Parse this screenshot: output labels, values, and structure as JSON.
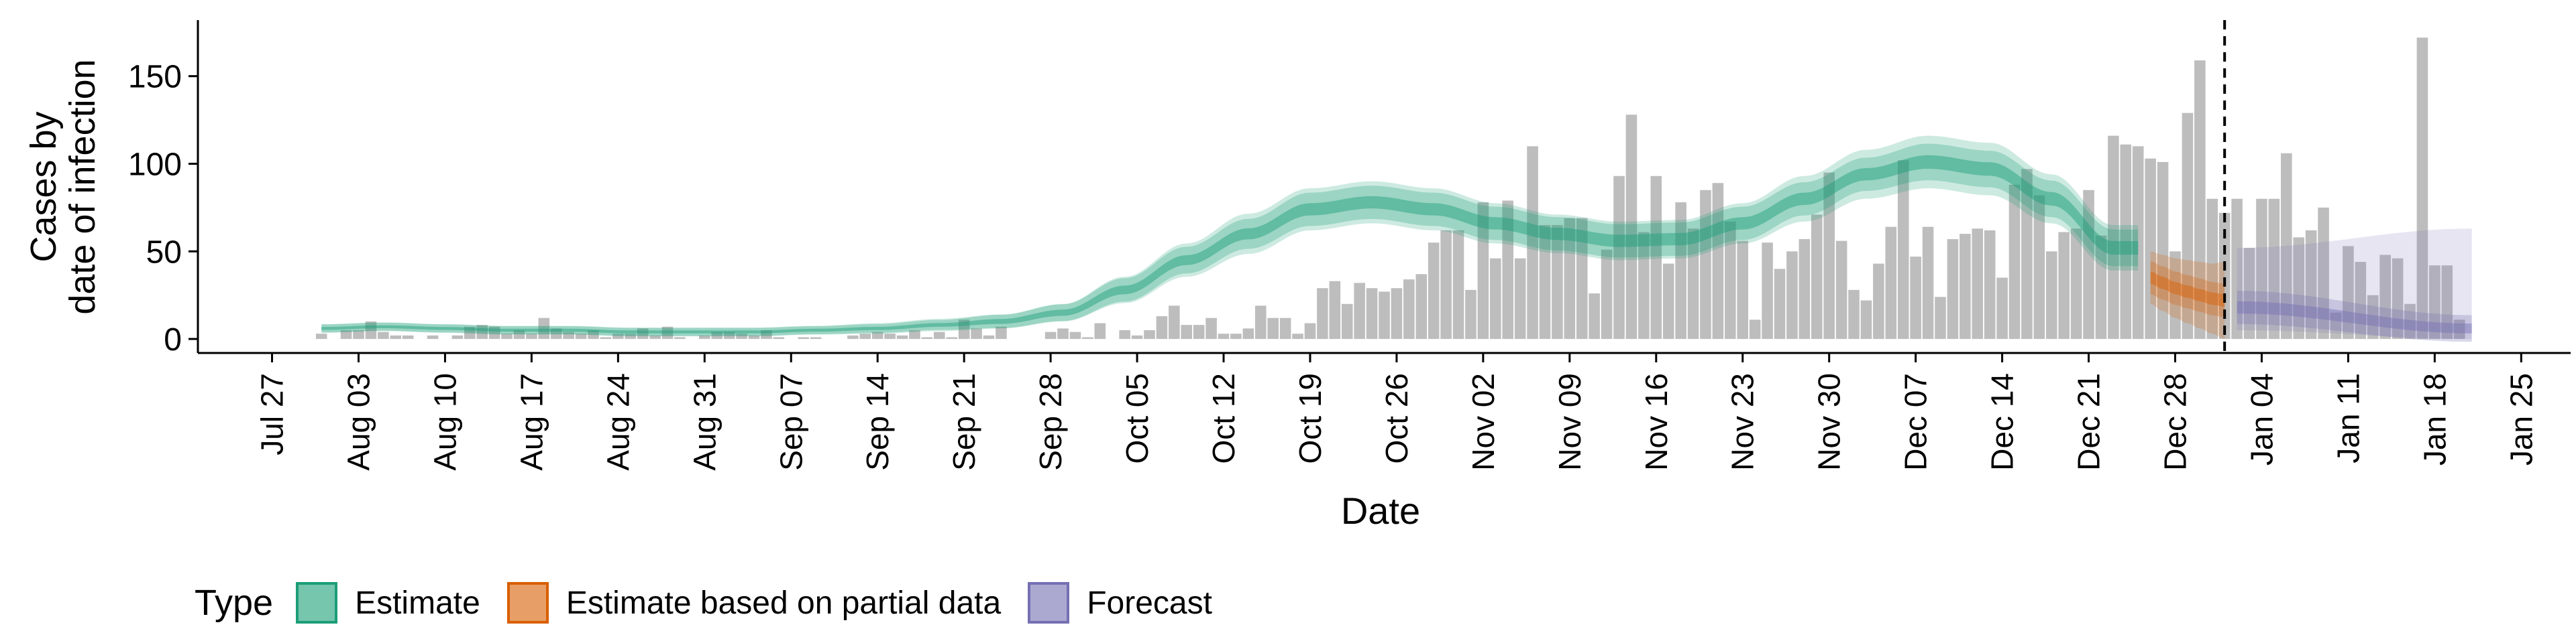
{
  "colors": {
    "bars": "#bdbdbd",
    "estimate": "#1b9e77",
    "partial": "#d95f02",
    "forecast": "#7570b3"
  },
  "chart_data": {
    "type": "bar",
    "title": "",
    "xlabel": "Date",
    "ylabel": "Cases by\ndate of infection",
    "ylim": [
      -8,
      182
    ],
    "yticks": [
      0,
      50,
      100,
      150
    ],
    "xlim": [
      "2020-07-21",
      "2021-01-29"
    ],
    "xticks": [
      {
        "date": "2020-07-27",
        "label": "Jul 27"
      },
      {
        "date": "2020-08-03",
        "label": "Aug 03"
      },
      {
        "date": "2020-08-10",
        "label": "Aug 10"
      },
      {
        "date": "2020-08-17",
        "label": "Aug 17"
      },
      {
        "date": "2020-08-24",
        "label": "Aug 24"
      },
      {
        "date": "2020-08-31",
        "label": "Aug 31"
      },
      {
        "date": "2020-09-07",
        "label": "Sep 07"
      },
      {
        "date": "2020-09-14",
        "label": "Sep 14"
      },
      {
        "date": "2020-09-21",
        "label": "Sep 21"
      },
      {
        "date": "2020-09-28",
        "label": "Sep 28"
      },
      {
        "date": "2020-10-05",
        "label": "Oct 05"
      },
      {
        "date": "2020-10-12",
        "label": "Oct 12"
      },
      {
        "date": "2020-10-19",
        "label": "Oct 19"
      },
      {
        "date": "2020-10-26",
        "label": "Oct 26"
      },
      {
        "date": "2020-11-02",
        "label": "Nov 02"
      },
      {
        "date": "2020-11-09",
        "label": "Nov 09"
      },
      {
        "date": "2020-11-16",
        "label": "Nov 16"
      },
      {
        "date": "2020-11-23",
        "label": "Nov 23"
      },
      {
        "date": "2020-11-30",
        "label": "Nov 30"
      },
      {
        "date": "2020-12-07",
        "label": "Dec 07"
      },
      {
        "date": "2020-12-14",
        "label": "Dec 14"
      },
      {
        "date": "2020-12-21",
        "label": "Dec 21"
      },
      {
        "date": "2020-12-28",
        "label": "Dec 28"
      },
      {
        "date": "2021-01-04",
        "label": "Jan 04"
      },
      {
        "date": "2021-01-11",
        "label": "Jan 11"
      },
      {
        "date": "2021-01-18",
        "label": "Jan 18"
      },
      {
        "date": "2021-01-25",
        "label": "Jan 25"
      }
    ],
    "forecast_start": "2021-01-01",
    "grid": false,
    "legend_position": "bottom-left",
    "bars": {
      "start_date": "2020-07-31",
      "values": [
        3,
        0,
        5,
        5,
        10,
        4,
        2,
        2,
        0,
        2,
        0,
        2,
        7,
        8,
        7,
        3,
        5,
        3,
        12,
        6,
        4,
        3,
        5,
        1,
        3,
        3,
        6,
        2,
        7,
        1,
        0,
        2,
        4,
        4,
        3,
        2,
        5,
        1,
        0,
        1,
        1,
        0,
        0,
        2,
        3,
        4,
        3,
        2,
        5,
        1,
        4,
        1,
        11,
        6,
        2,
        7,
        0,
        0,
        0,
        4,
        6,
        4,
        1,
        9,
        0,
        5,
        2,
        5,
        13,
        19,
        8,
        8,
        12,
        3,
        3,
        6,
        19,
        12,
        12,
        3,
        9,
        29,
        33,
        20,
        32,
        29,
        27,
        29,
        34,
        37,
        55,
        62,
        62,
        28,
        78,
        46,
        79,
        46,
        110,
        65,
        65,
        69,
        69,
        26,
        51,
        93,
        128,
        61,
        93,
        43,
        78,
        63,
        85,
        89,
        67,
        56,
        11,
        55,
        40,
        50,
        57,
        71,
        95,
        56,
        28,
        22,
        43,
        64,
        102,
        47,
        64,
        24,
        57,
        60,
        63,
        62,
        35,
        88,
        97,
        82,
        50,
        61,
        63,
        85,
        59,
        116,
        111,
        110,
        103,
        101,
        50,
        129,
        159,
        80,
        72,
        80,
        52,
        80,
        80,
        106,
        58,
        62,
        75,
        15,
        53,
        44,
        25,
        48,
        46,
        20,
        172,
        42,
        42,
        11
      ]
    },
    "series": [
      {
        "name": "Estimate",
        "start_date": "2020-07-31",
        "end_date": "2020-12-25",
        "knots_days": [
          0,
          5,
          10,
          15,
          20,
          25,
          30,
          35,
          40,
          45,
          50,
          55,
          60,
          65,
          70,
          75,
          80,
          85,
          90,
          95,
          100,
          105,
          110,
          115,
          120,
          125,
          130,
          135,
          140,
          145
        ],
        "median": [
          6,
          7,
          6,
          5,
          5,
          4,
          4,
          4,
          5,
          6,
          8,
          10,
          15,
          28,
          45,
          60,
          74,
          78,
          74,
          66,
          60,
          56,
          57,
          66,
          80,
          94,
          101,
          97,
          80,
          52
        ],
        "inner_half_width": [
          1.2,
          1.2,
          1.2,
          1.2,
          1.2,
          1.2,
          1.2,
          1.2,
          1.2,
          1.3,
          1.5,
          2,
          2.5,
          3.5,
          4,
          4.5,
          5,
          5,
          5,
          5,
          5,
          5,
          5,
          5,
          5,
          5,
          5.5,
          5.5,
          5.5,
          5.5
        ],
        "outer_half_width": [
          2.5,
          2.5,
          2.5,
          2.5,
          2.5,
          2.5,
          2.5,
          2.5,
          2.5,
          3,
          3.5,
          4,
          5,
          7.5,
          9.5,
          11.5,
          12,
          12,
          12,
          11.5,
          11,
          11,
          11,
          11.5,
          13,
          14,
          15,
          15,
          14,
          13
        ]
      },
      {
        "name": "Estimate based on partial data",
        "start_date": "2020-12-26",
        "end_date": "2021-01-01",
        "knots_days": [
          0,
          1,
          2,
          3,
          4,
          5,
          6
        ],
        "median": [
          35,
          32,
          29,
          27,
          25,
          23,
          22
        ],
        "inner_half_width": [
          5,
          5,
          5,
          5,
          5,
          5,
          5
        ],
        "outer_half_width": [
          15,
          16,
          17,
          18,
          19,
          20,
          22
        ]
      },
      {
        "name": "Forecast",
        "start_date": "2021-01-02",
        "end_date": "2021-01-21",
        "knots_days": [
          0,
          19
        ],
        "median": [
          18,
          6
        ],
        "inner_half_width": [
          5,
          4
        ],
        "lower": [
          5,
          0
        ],
        "upper": [
          52,
          63
        ]
      }
    ]
  },
  "legend": {
    "title": "Type",
    "items": [
      {
        "label": "Estimate",
        "color": "#1b9e77"
      },
      {
        "label": "Estimate based on partial data",
        "color": "#d95f02"
      },
      {
        "label": "Forecast",
        "color": "#7570b3"
      }
    ]
  }
}
